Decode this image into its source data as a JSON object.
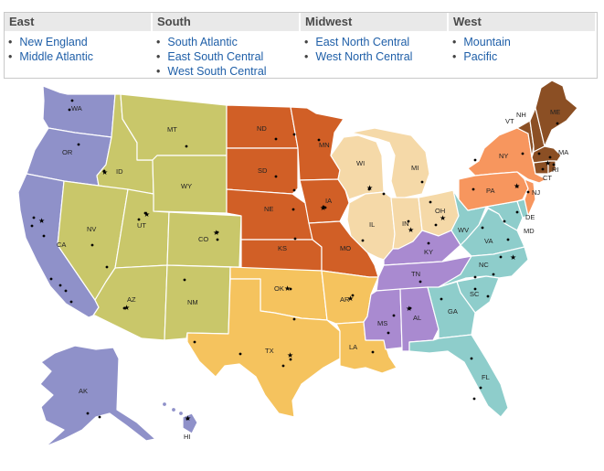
{
  "legend": [
    {
      "name": "East",
      "divisions": [
        "New England",
        "Middle Atlantic"
      ]
    },
    {
      "name": "South",
      "divisions": [
        "South Atlantic",
        "East South Central",
        "West South Central"
      ]
    },
    {
      "name": "Midwest",
      "divisions": [
        "East North Central",
        "West North Central"
      ]
    },
    {
      "name": "West",
      "divisions": [
        "Mountain",
        "Pacific"
      ]
    }
  ],
  "colors": {
    "pacific": "#8f91c9",
    "mountain": "#c9c76a",
    "west_north_central": "#d15f26",
    "east_north_central": "#f5d9a8",
    "west_south_central": "#f5c35e",
    "east_south_central": "#a98ad0",
    "south_atlantic": "#8ecdcb",
    "middle_atlantic": "#f7965e",
    "new_england": "#8b4f24"
  },
  "states": {
    "WA": "WA",
    "OR": "OR",
    "CA": "CA",
    "ID": "ID",
    "MT": "MT",
    "WY": "WY",
    "NV": "NV",
    "UT": "UT",
    "CO": "CO",
    "AZ": "AZ",
    "NM": "NM",
    "ND": "ND",
    "SD": "SD",
    "NE": "NE",
    "KS": "KS",
    "MN": "MN",
    "IA": "IA",
    "MO": "MO",
    "WI": "WI",
    "MI": "MI",
    "IL": "IL",
    "IN": "IN",
    "OH": "OH",
    "OK": "OK",
    "TX": "TX",
    "AR": "AR",
    "LA": "LA",
    "KY": "KY",
    "TN": "TN",
    "MS": "MS",
    "AL": "AL",
    "WV": "WV",
    "VA": "VA",
    "NC": "NC",
    "SC": "SC",
    "GA": "GA",
    "FL": "FL",
    "DE": "DE",
    "MD": "MD",
    "NY": "NY",
    "PA": "PA",
    "NJ": "NJ",
    "VT": "VT",
    "NH": "NH",
    "ME": "ME",
    "MA": "MA",
    "CT": "CT",
    "RI": "RI",
    "AK": "AK",
    "HI": "HI"
  }
}
